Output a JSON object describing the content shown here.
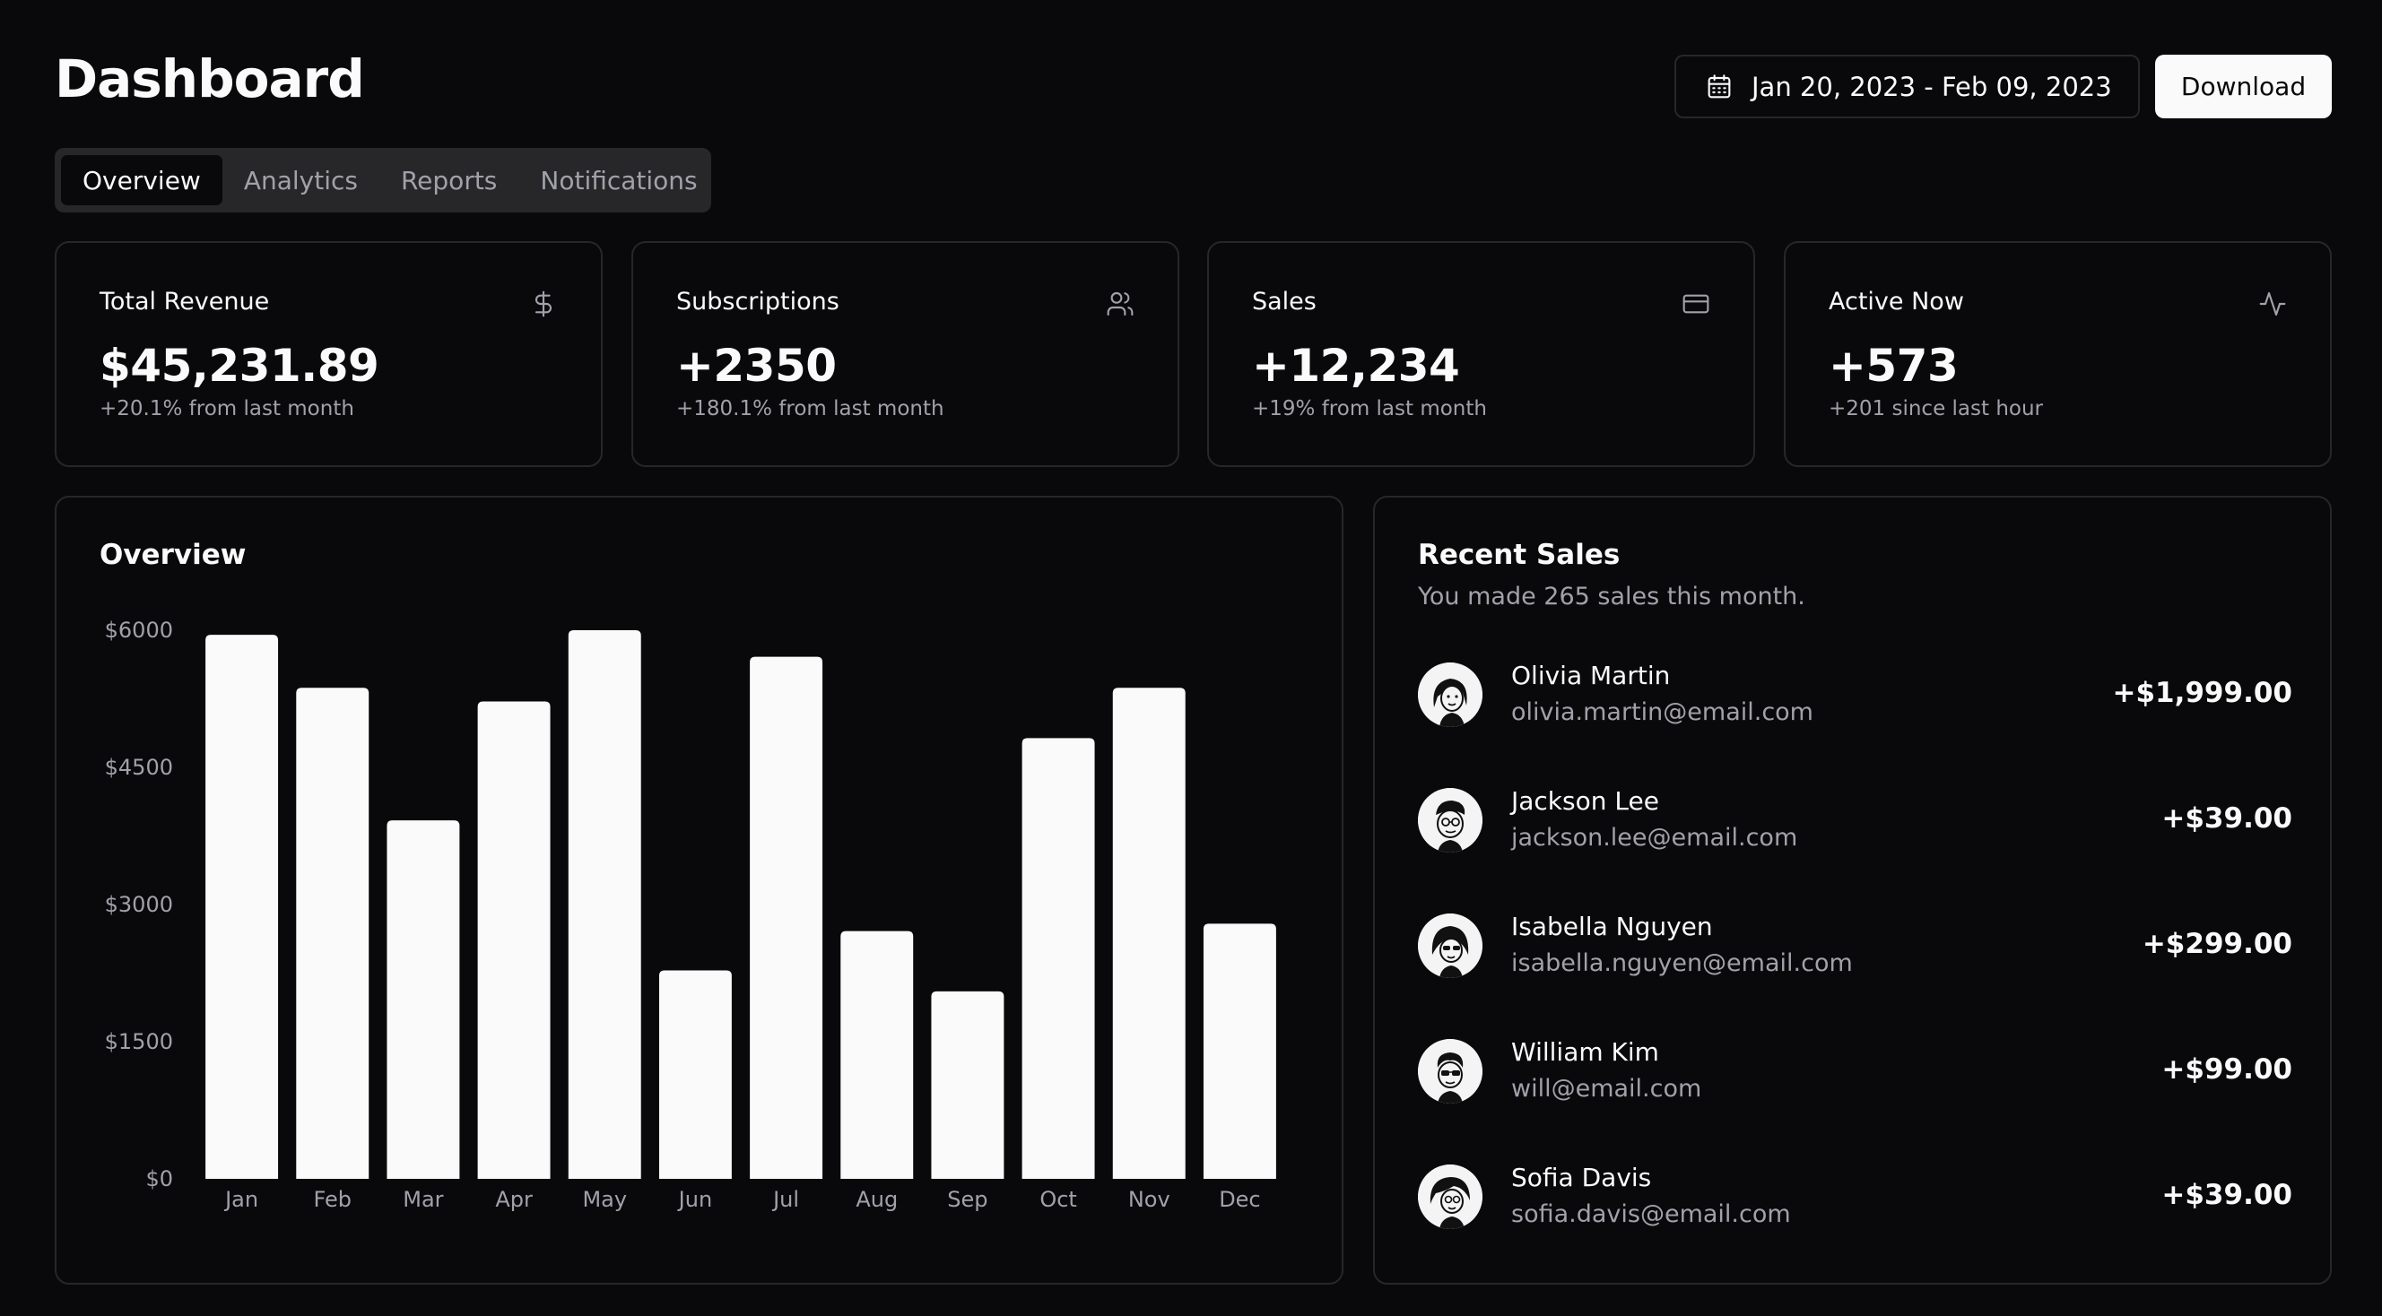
{
  "header": {
    "title": "Dashboard",
    "date_range": "Jan 20, 2023 - Feb 09, 2023",
    "date_icon": "calendar-icon",
    "download_label": "Download"
  },
  "tabs": [
    {
      "label": "Overview",
      "active": true
    },
    {
      "label": "Analytics",
      "active": false
    },
    {
      "label": "Reports",
      "active": false
    },
    {
      "label": "Notifications",
      "active": false
    }
  ],
  "stats": [
    {
      "label": "Total Revenue",
      "value": "$45,231.89",
      "sub": "+20.1% from last month",
      "icon": "dollar-icon"
    },
    {
      "label": "Subscriptions",
      "value": "+2350",
      "sub": "+180.1% from last month",
      "icon": "users-icon"
    },
    {
      "label": "Sales",
      "value": "+12,234",
      "sub": "+19% from last month",
      "icon": "credit-card-icon"
    },
    {
      "label": "Active Now",
      "value": "+573",
      "sub": "+201 since last hour",
      "icon": "activity-icon"
    }
  ],
  "overview": {
    "title": "Overview"
  },
  "chart_data": {
    "type": "bar",
    "title": "Overview",
    "categories": [
      "Jan",
      "Feb",
      "Mar",
      "Apr",
      "May",
      "Jun",
      "Jul",
      "Aug",
      "Sep",
      "Oct",
      "Nov",
      "Dec"
    ],
    "values": [
      5950,
      5370,
      3920,
      5220,
      6000,
      2280,
      5710,
      2710,
      2050,
      4820,
      5370,
      2790
    ],
    "ylim": [
      0,
      6000
    ],
    "yticks": [
      0,
      1500,
      3000,
      4500,
      6000
    ],
    "ytick_labels": [
      "$0",
      "$1500",
      "$3000",
      "$4500",
      "$6000"
    ],
    "xlabel": "",
    "ylabel": "",
    "grid": false,
    "bar_color": "#fafafa"
  },
  "recent_sales": {
    "title": "Recent Sales",
    "description": "You made 265 sales this month.",
    "items": [
      {
        "name": "Olivia Martin",
        "email": "olivia.martin@email.com",
        "amount": "+$1,999.00",
        "avatar": "avatar-olivia"
      },
      {
        "name": "Jackson Lee",
        "email": "jackson.lee@email.com",
        "amount": "+$39.00",
        "avatar": "avatar-jackson"
      },
      {
        "name": "Isabella Nguyen",
        "email": "isabella.nguyen@email.com",
        "amount": "+$299.00",
        "avatar": "avatar-isabella"
      },
      {
        "name": "William Kim",
        "email": "will@email.com",
        "amount": "+$99.00",
        "avatar": "avatar-william"
      },
      {
        "name": "Sofia Davis",
        "email": "sofia.davis@email.com",
        "amount": "+$39.00",
        "avatar": "avatar-sofia"
      }
    ]
  },
  "colors": {
    "background": "#09090b",
    "border": "#27272a",
    "foreground": "#fafafa",
    "muted": "#a1a1aa"
  }
}
